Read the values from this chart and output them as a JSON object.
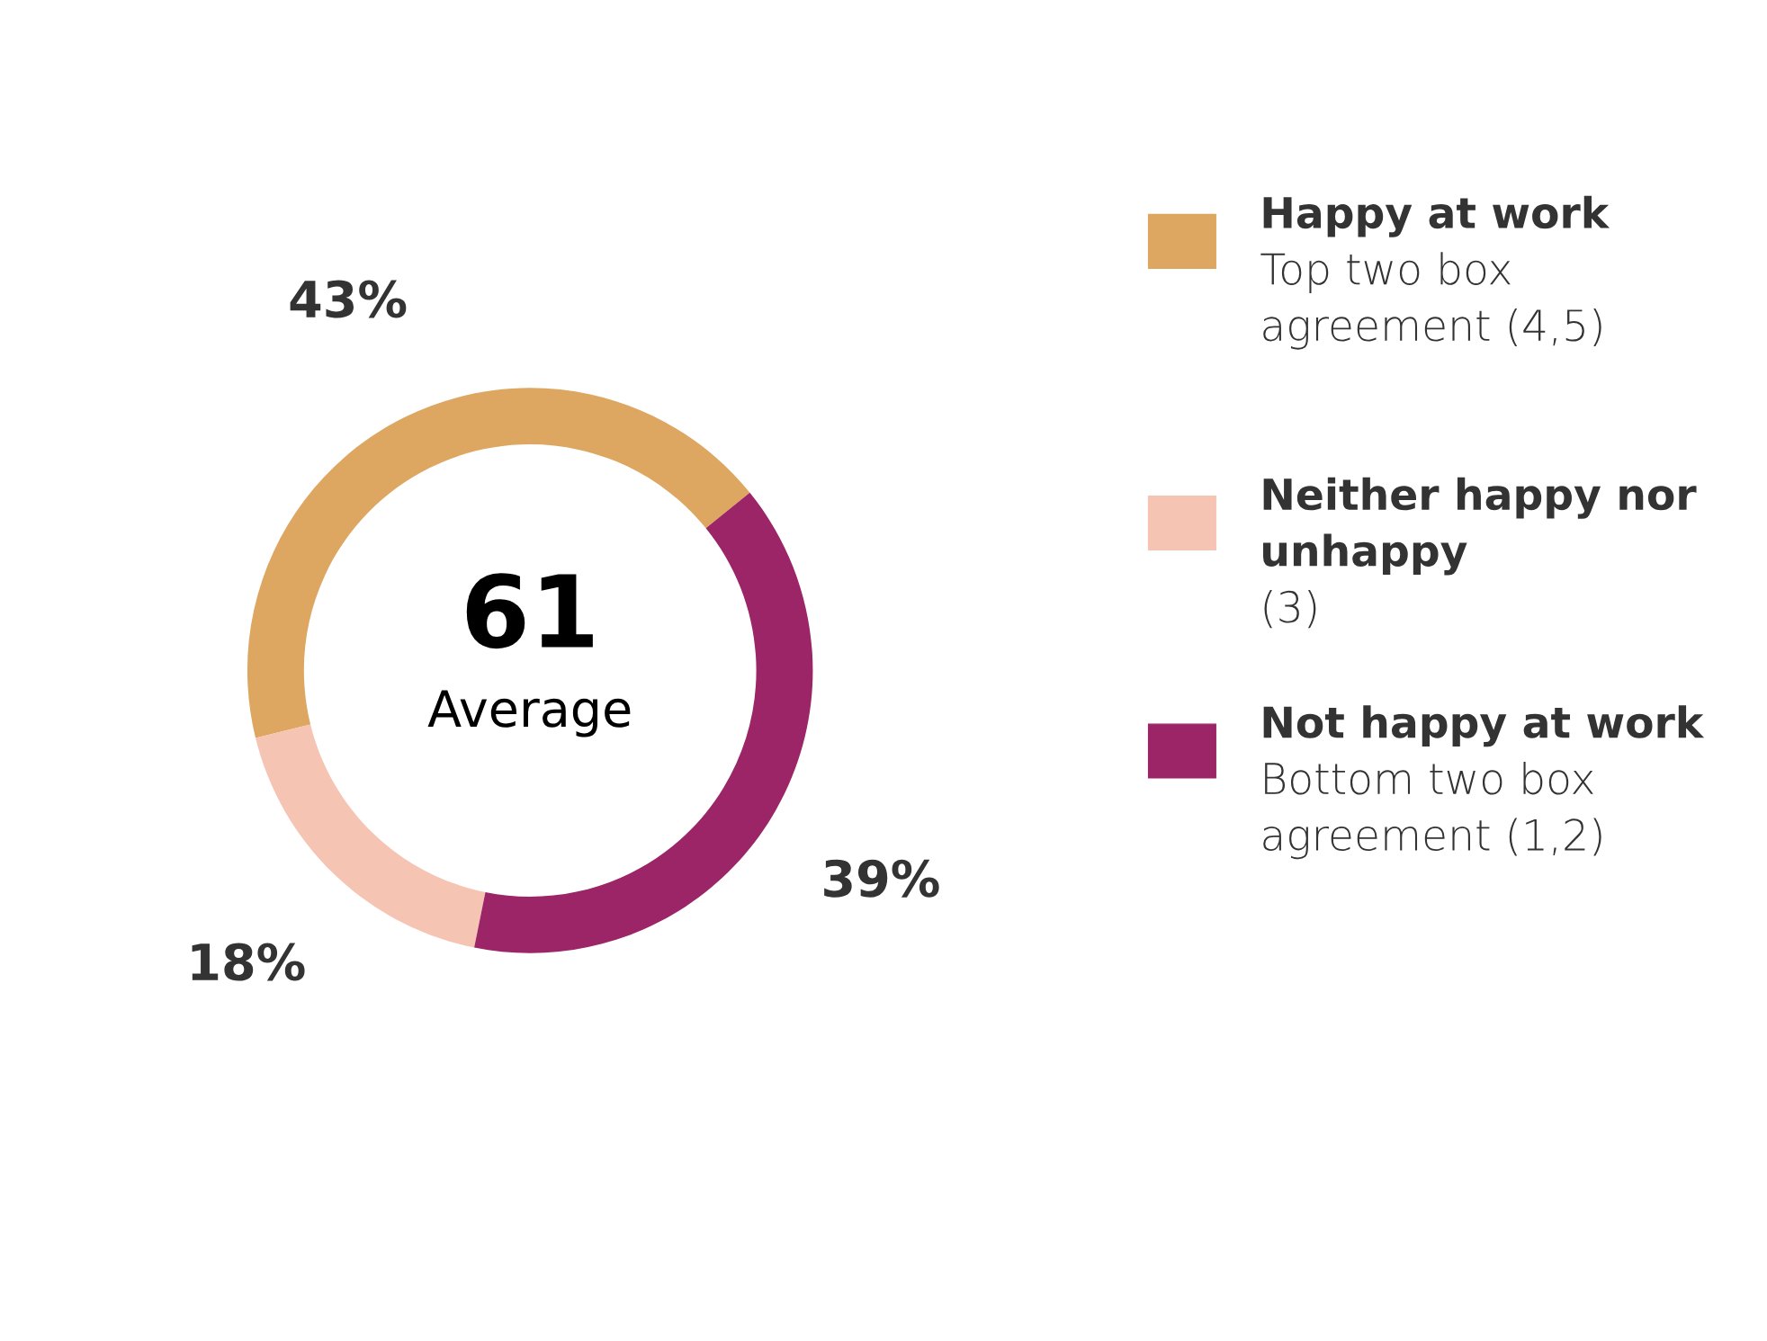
{
  "chart_data": {
    "type": "donut",
    "categories": [
      "Happy at work\nTop two box\nagreement (4,5)",
      "Neither happy nor\nunhappy\n(3)",
      "Not happy at work\nBottom two box\nagreement (1,2)"
    ],
    "values": [
      43,
      18,
      39
    ],
    "colors": [
      "#dda661",
      "#f5c4b3",
      "#9b2566"
    ],
    "value_labels": [
      "43%",
      "18%",
      "39%"
    ],
    "annotations": [
      "61",
      "Average"
    ],
    "legend": "right"
  }
}
